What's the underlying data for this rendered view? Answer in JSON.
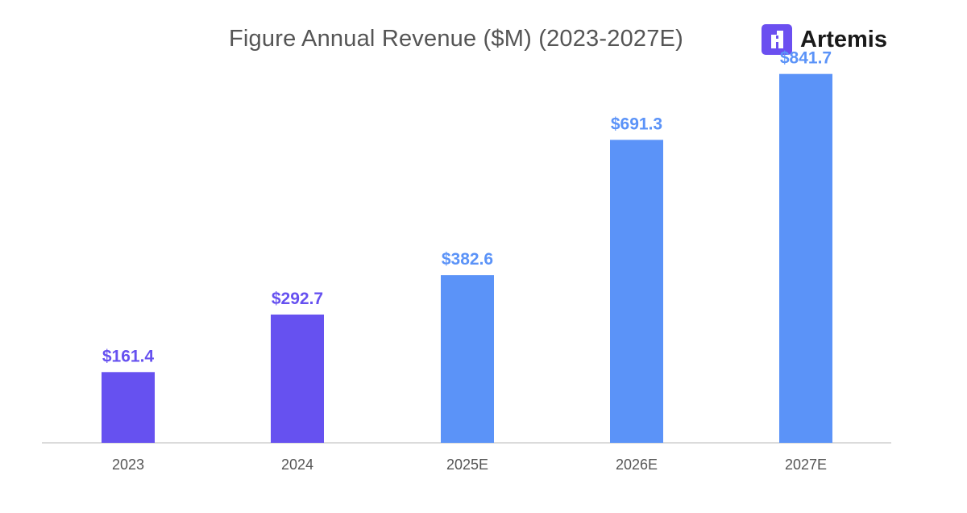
{
  "brand": {
    "name": "Artemis",
    "logo_icon": "artemis-logo-icon",
    "logo_color": "#6b4ff0"
  },
  "chart_data": {
    "type": "bar",
    "title": "Figure Annual Revenue ($M) (2023-2027E)",
    "categories": [
      "2023",
      "2024",
      "2025E",
      "2026E",
      "2027E"
    ],
    "values": [
      161.4,
      292.7,
      382.6,
      691.3,
      841.7
    ],
    "value_labels": [
      "$161.4",
      "$292.7",
      "$382.6",
      "$691.3",
      "$841.7"
    ],
    "estimate": [
      false,
      false,
      true,
      true,
      true
    ],
    "colors": {
      "actual": "#6651f0",
      "estimate": "#5b93f8",
      "actual_label": "#6651f0",
      "estimate_label": "#5b93f8",
      "axis": "#cfcfcf"
    },
    "ylim": [
      0,
      900
    ],
    "xlabel": "",
    "ylabel": "",
    "grid": false,
    "legend": "none"
  }
}
